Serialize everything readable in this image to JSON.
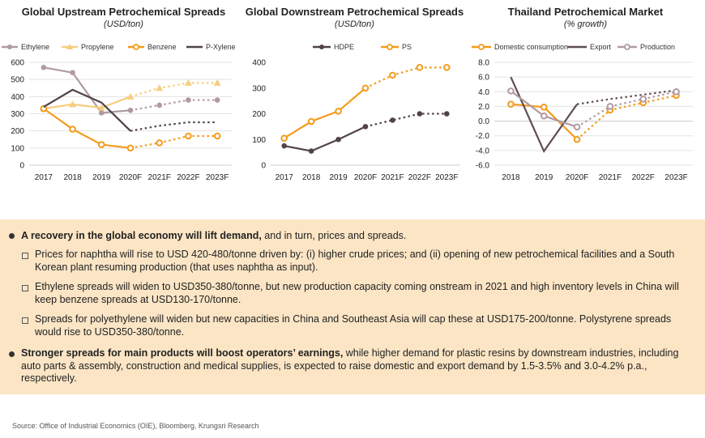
{
  "chart_data": [
    {
      "type": "line",
      "title": "Global Upstream Petrochemical Spreads",
      "subtitle": "(USD/ton)",
      "categories": [
        "2017",
        "2018",
        "2019",
        "2020F",
        "2021F",
        "2022F",
        "2023F"
      ],
      "ylim": [
        0,
        600
      ],
      "yticks": [
        0,
        100,
        200,
        300,
        400,
        500,
        600
      ],
      "forecast_start_index": 3,
      "series": [
        {
          "name": "Ethylene",
          "color": "#b09aa3",
          "marker": "circle",
          "values": [
            570,
            540,
            305,
            320,
            350,
            380,
            380
          ]
        },
        {
          "name": "Propylene",
          "color": "#f7cd7e",
          "marker": "triangle",
          "values": [
            330,
            355,
            335,
            400,
            450,
            480,
            480
          ]
        },
        {
          "name": "Benzene",
          "color": "#f39b1b",
          "marker": "circle-open",
          "values": [
            330,
            210,
            120,
            100,
            130,
            170,
            170
          ]
        },
        {
          "name": "P-Xylene",
          "color": "#514348",
          "marker": "none",
          "values": [
            340,
            440,
            365,
            200,
            230,
            250,
            250
          ]
        }
      ]
    },
    {
      "type": "line",
      "title": "Global Downstream Petrochemical Spreads",
      "subtitle": "(USD/ton)",
      "categories": [
        "2017",
        "2018",
        "2019",
        "2020F",
        "2021F",
        "2022F",
        "2023F"
      ],
      "ylim": [
        0,
        400
      ],
      "yticks": [
        0,
        100,
        200,
        300,
        400
      ],
      "forecast_start_index": 3,
      "series": [
        {
          "name": "HDPE",
          "color": "#514348",
          "marker": "circle",
          "values": [
            75,
            55,
            100,
            150,
            175,
            200,
            200
          ]
        },
        {
          "name": "PS",
          "color": "#f39b1b",
          "marker": "circle-open",
          "values": [
            105,
            170,
            210,
            300,
            350,
            380,
            380
          ]
        }
      ]
    },
    {
      "type": "line",
      "title": "Thailand Petrochemical Market",
      "subtitle": "(% growth)",
      "categories": [
        "2018",
        "2019",
        "2020F",
        "2021F",
        "2022F",
        "2023F"
      ],
      "ylim": [
        -6,
        8
      ],
      "yticks": [
        "8.0",
        "6.0",
        "4.0",
        "2.0",
        "0.0",
        "-2.0",
        "-4.0",
        "-6.0"
      ],
      "forecast_start_index": 2,
      "series": [
        {
          "name": "Domestic consumption",
          "color": "#f39b1b",
          "marker": "circle-open",
          "values": [
            2.3,
            1.9,
            -2.5,
            1.5,
            2.5,
            3.5
          ]
        },
        {
          "name": "Export",
          "color": "#5d4e53",
          "marker": "none",
          "values": [
            6.0,
            -4.1,
            2.3,
            3.0,
            3.6,
            4.2
          ]
        },
        {
          "name": "Production",
          "color": "#b09aa3",
          "marker": "circle-open",
          "values": [
            4.1,
            0.7,
            -0.8,
            2.0,
            3.0,
            4.0
          ]
        }
      ]
    }
  ],
  "bullets": [
    {
      "bold": "A recovery in the global economy will lift demand,",
      "text": " and in turn, prices and spreads."
    },
    {
      "text": "Prices for naphtha will rise to USD 420-480/tonne driven by: (i) higher crude prices; and (ii) opening of new petrochemical facilities and a South Korean plant resuming production (that uses naphtha as input)."
    },
    {
      "text": "Ethylene spreads will widen to USD350-380/tonne, but new production capacity coming onstream in 2021 and high inventory levels in China will keep benzene spreads at USD130-170/tonne."
    },
    {
      "text": "Spreads for polyethylene will widen but new capacities in China and Southeast Asia will cap these at USD175-200/tonne. Polystyrene spreads would rise to USD350-380/tonne."
    },
    {
      "bold": "Stronger spreads for main products will boost operators’ earnings,",
      "text": " while higher demand for plastic resins by downstream industries, including auto parts & assembly, construction and medical supplies, is expected to raise domestic and export demand by 1.5-3.5% and 3.0-4.2% p.a., respectively."
    }
  ],
  "source": "Source: Office of Industrial Economics (OIE), Bloomberg, Krungsri Research"
}
